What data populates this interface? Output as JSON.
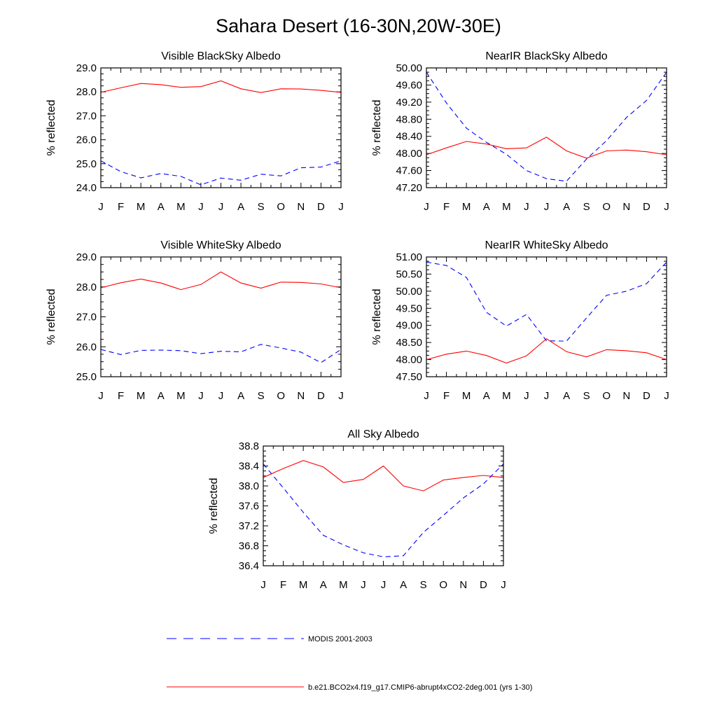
{
  "title": "Sahara Desert (16-30N,20W-30E)",
  "month_labels": [
    "J",
    "F",
    "M",
    "A",
    "M",
    "J",
    "J",
    "A",
    "S",
    "O",
    "N",
    "D",
    "J"
  ],
  "colors": {
    "model": "#ff0000",
    "modis": "#0000ff",
    "axes": "#000000"
  },
  "legend": {
    "modis_label": "MODIS 2001-2003",
    "model_label": "b.e21.BCO2x4.f19_g17.CMIP6-abrupt4xCO2-2deg.001 (yrs 1-30)"
  },
  "chart_data": [
    {
      "type": "line",
      "title": "Visible BlackSky Albedo",
      "ylabel": "% reflected",
      "ylim": [
        24.0,
        29.0
      ],
      "yticks": [
        "24.0",
        "25.0",
        "26.0",
        "27.0",
        "28.0",
        "29.0"
      ],
      "ytick_values": [
        24.0,
        25.0,
        26.0,
        27.0,
        28.0,
        29.0
      ],
      "x": [
        "J",
        "F",
        "M",
        "A",
        "M",
        "J",
        "J",
        "A",
        "S",
        "O",
        "N",
        "D",
        "J"
      ],
      "series": [
        {
          "name": "b.e21.BCO2x4.f19_g17.CMIP6-abrupt4xCO2-2deg.001 (yrs 1-30)",
          "style": "solid",
          "color": "#ff0000",
          "values": [
            27.98,
            28.17,
            28.35,
            28.3,
            28.19,
            28.22,
            28.46,
            28.13,
            27.97,
            28.13,
            28.12,
            28.06,
            27.98
          ]
        },
        {
          "name": "MODIS 2001-2003",
          "style": "dashed",
          "color": "#0000ff",
          "values": [
            25.12,
            24.67,
            24.41,
            24.59,
            24.47,
            24.12,
            24.4,
            24.31,
            24.56,
            24.49,
            24.83,
            24.86,
            25.12
          ]
        }
      ]
    },
    {
      "type": "line",
      "title": "NearIR BlackSky Albedo",
      "ylabel": "% reflected",
      "ylim": [
        47.2,
        50.0
      ],
      "yticks": [
        "47.20",
        "47.60",
        "48.00",
        "48.40",
        "48.80",
        "49.20",
        "49.60",
        "50.00"
      ],
      "ytick_values": [
        47.2,
        47.6,
        48.0,
        48.4,
        48.8,
        49.2,
        49.6,
        50.0
      ],
      "x": [
        "J",
        "F",
        "M",
        "A",
        "M",
        "J",
        "J",
        "A",
        "S",
        "O",
        "N",
        "D",
        "J"
      ],
      "series": [
        {
          "name": "b.e21.BCO2x4.f19_g17.CMIP6-abrupt4xCO2-2deg.001 (yrs 1-30)",
          "style": "solid",
          "color": "#ff0000",
          "values": [
            47.97,
            48.13,
            48.28,
            48.22,
            48.11,
            48.13,
            48.38,
            48.06,
            47.89,
            48.06,
            48.08,
            48.04,
            47.97
          ]
        },
        {
          "name": "MODIS 2001-2003",
          "style": "dashed",
          "color": "#0000ff",
          "values": [
            49.9,
            49.18,
            48.59,
            48.26,
            47.98,
            47.6,
            47.41,
            47.35,
            47.87,
            48.3,
            48.84,
            49.24,
            49.9
          ]
        }
      ]
    },
    {
      "type": "line",
      "title": "Visible WhiteSky Albedo",
      "ylabel": "% reflected",
      "ylim": [
        25.0,
        29.0
      ],
      "yticks": [
        "25.0",
        "26.0",
        "27.0",
        "28.0",
        "29.0"
      ],
      "ytick_values": [
        25.0,
        26.0,
        27.0,
        28.0,
        29.0
      ],
      "x": [
        "J",
        "F",
        "M",
        "A",
        "M",
        "J",
        "J",
        "A",
        "S",
        "O",
        "N",
        "D",
        "J"
      ],
      "series": [
        {
          "name": "b.e21.BCO2x4.f19_g17.CMIP6-abrupt4xCO2-2deg.001 (yrs 1-30)",
          "style": "solid",
          "color": "#ff0000",
          "values": [
            27.97,
            28.14,
            28.26,
            28.13,
            27.91,
            28.08,
            28.5,
            28.13,
            27.96,
            28.16,
            28.15,
            28.1,
            27.97
          ]
        },
        {
          "name": "MODIS 2001-2003",
          "style": "dashed",
          "color": "#0000ff",
          "values": [
            25.91,
            25.74,
            25.88,
            25.89,
            25.87,
            25.77,
            25.85,
            25.83,
            26.08,
            25.96,
            25.82,
            25.47,
            25.91
          ]
        }
      ]
    },
    {
      "type": "line",
      "title": "NearIR WhiteSky Albedo",
      "ylabel": "% reflected",
      "ylim": [
        47.5,
        51.0
      ],
      "yticks": [
        "47.50",
        "48.00",
        "48.50",
        "49.00",
        "49.50",
        "50.00",
        "50.50",
        "51.00"
      ],
      "ytick_values": [
        47.5,
        48.0,
        48.5,
        49.0,
        49.5,
        50.0,
        50.5,
        51.0
      ],
      "x": [
        "J",
        "F",
        "M",
        "A",
        "M",
        "J",
        "J",
        "A",
        "S",
        "O",
        "N",
        "D",
        "J"
      ],
      "series": [
        {
          "name": "b.e21.BCO2x4.f19_g17.CMIP6-abrupt4xCO2-2deg.001 (yrs 1-30)",
          "style": "solid",
          "color": "#ff0000",
          "values": [
            48.0,
            48.16,
            48.25,
            48.12,
            47.9,
            48.11,
            48.61,
            48.23,
            48.08,
            48.29,
            48.26,
            48.2,
            48.0
          ]
        },
        {
          "name": "MODIS 2001-2003",
          "style": "dashed",
          "color": "#0000ff",
          "values": [
            50.85,
            50.75,
            50.4,
            49.38,
            48.98,
            49.32,
            48.55,
            48.54,
            49.22,
            49.88,
            50.0,
            50.22,
            50.85
          ]
        }
      ]
    },
    {
      "type": "line",
      "title": "All Sky Albedo",
      "ylabel": "% reflected",
      "ylim": [
        36.4,
        38.8
      ],
      "yticks": [
        "36.4",
        "36.8",
        "37.2",
        "37.6",
        "38.0",
        "38.4",
        "38.8"
      ],
      "ytick_values": [
        36.4,
        36.8,
        37.2,
        37.6,
        38.0,
        38.4,
        38.8
      ],
      "x": [
        "J",
        "F",
        "M",
        "A",
        "M",
        "J",
        "J",
        "A",
        "S",
        "O",
        "N",
        "D",
        "J"
      ],
      "series": [
        {
          "name": "b.e21.BCO2x4.f19_g17.CMIP6-abrupt4xCO2-2deg.001 (yrs 1-30)",
          "style": "solid",
          "color": "#ff0000",
          "values": [
            38.17,
            38.35,
            38.51,
            38.38,
            38.07,
            38.13,
            38.4,
            38.0,
            37.9,
            38.12,
            38.17,
            38.21,
            38.17
          ]
        },
        {
          "name": "MODIS 2001-2003",
          "style": "dashed",
          "color": "#0000ff",
          "values": [
            38.44,
            37.96,
            37.47,
            37.01,
            36.82,
            36.66,
            36.58,
            36.6,
            37.07,
            37.41,
            37.76,
            38.04,
            38.44
          ]
        }
      ]
    }
  ]
}
